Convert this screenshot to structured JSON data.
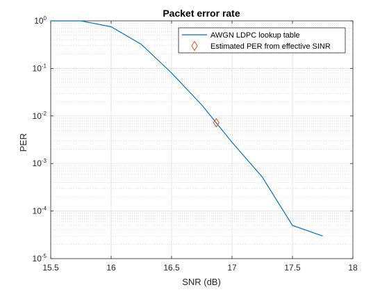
{
  "chart_data": {
    "type": "line",
    "title": "Packet error rate",
    "xlabel": "SNR (dB)",
    "ylabel": "PER",
    "xlim": [
      15.5,
      18
    ],
    "ylim": [
      1e-05,
      1
    ],
    "yscale": "log",
    "grid": true,
    "minor_grid": true,
    "legend_position": "top-right",
    "x_ticks": [
      "15.5",
      "16",
      "16.5",
      "17",
      "17.5",
      "18"
    ],
    "x_tick_values": [
      15.5,
      16,
      16.5,
      17,
      17.5,
      18
    ],
    "y_ticks": [
      {
        "base": "10",
        "exp": "0",
        "value": 1
      },
      {
        "base": "10",
        "exp": "-1",
        "value": 0.1
      },
      {
        "base": "10",
        "exp": "-2",
        "value": 0.01
      },
      {
        "base": "10",
        "exp": "-3",
        "value": 0.001
      },
      {
        "base": "10",
        "exp": "-4",
        "value": 0.0001
      },
      {
        "base": "10",
        "exp": "-5",
        "value": 1e-05
      }
    ],
    "series": [
      {
        "name": "AWGN LDPC lookup table",
        "kind": "line",
        "color": "#0072BD",
        "x": [
          15.5,
          15.75,
          16.0,
          16.25,
          16.5,
          16.75,
          17.0,
          17.25,
          17.5,
          17.75
        ],
        "y": [
          1.0,
          1.0,
          0.75,
          0.32,
          0.08,
          0.017,
          0.0028,
          0.00052,
          5e-05,
          3e-05
        ]
      },
      {
        "name": "Estimated PER from effective SINR",
        "kind": "marker",
        "marker": "diamond",
        "color": "#D95319",
        "x": [
          16.87
        ],
        "y": [
          0.0072
        ]
      }
    ]
  }
}
